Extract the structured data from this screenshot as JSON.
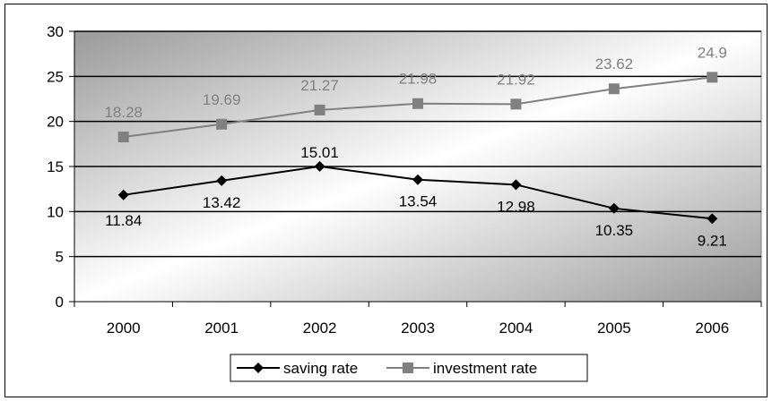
{
  "chart_data": {
    "type": "line",
    "title": "",
    "xlabel": "",
    "ylabel": "",
    "categories": [
      "2000",
      "2001",
      "2002",
      "2003",
      "2004",
      "2005",
      "2006"
    ],
    "ylim": [
      0,
      30
    ],
    "yticks": [
      0,
      5,
      10,
      15,
      20,
      25,
      30
    ],
    "grid": true,
    "legend_position": "bottom",
    "series": [
      {
        "name": "saving rate",
        "values": [
          11.84,
          13.42,
          15.01,
          13.54,
          12.98,
          10.35,
          9.21
        ],
        "labels": [
          "11.84",
          "13.42",
          "15.01",
          "13.54",
          "12.98",
          "10.35",
          "9.21"
        ],
        "color": "#000000",
        "marker": "diamond"
      },
      {
        "name": "investment rate",
        "values": [
          18.28,
          19.69,
          21.27,
          21.98,
          21.92,
          23.62,
          24.9
        ],
        "labels": [
          "18.28",
          "19.69",
          "21.27",
          "21.98",
          "21.92",
          "23.62",
          "24.9"
        ],
        "color": "#808080",
        "marker": "square"
      }
    ]
  }
}
